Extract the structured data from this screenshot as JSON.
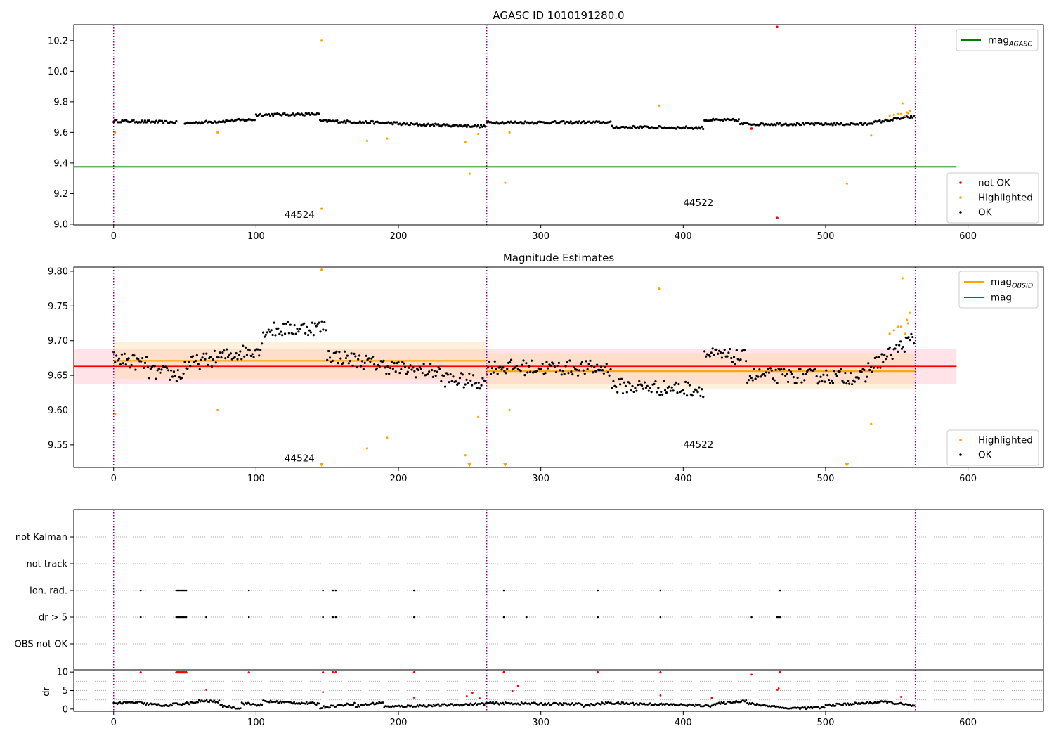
{
  "chart_data": [
    {
      "type": "scatter",
      "panel": "agasc-mag",
      "title": "AGASC ID 1010191280.0",
      "xlim": [
        -28,
        653
      ],
      "ylim": [
        8.995,
        10.305
      ],
      "xticks": [
        0,
        100,
        200,
        300,
        400,
        500,
        600
      ],
      "yticks": [
        9.0,
        9.2,
        9.4,
        9.6,
        9.8,
        10.0,
        10.2
      ],
      "ytick_decimals": 1,
      "obsid_boundaries": [
        0,
        262,
        563
      ],
      "annotations": [
        {
          "text": "44524",
          "x": 120,
          "y": 9.04
        },
        {
          "text": "44522",
          "x": 400,
          "y": 9.12
        }
      ],
      "hline": {
        "name": "mag_AGASC",
        "label": "mag",
        "sub": "AGASC",
        "y": 9.375,
        "x": [
          -28,
          592
        ],
        "color": "#008000"
      },
      "legend_upper": [
        {
          "label": "mag",
          "sub": "AGASC",
          "color": "#008000"
        }
      ],
      "legend_lower": [
        {
          "label": "not OK",
          "color": "#ff0000"
        },
        {
          "label": "Highlighted",
          "color": "#ffa500"
        },
        {
          "label": "OK",
          "color": "#000000"
        }
      ],
      "ok_segments": [
        {
          "x": [
            0,
            45
          ],
          "y": [
            9.675,
            9.665
          ],
          "jitter": 0.008
        },
        {
          "x": [
            50,
            100
          ],
          "y": [
            9.66,
            9.685
          ],
          "jitter": 0.008
        },
        {
          "x": [
            100,
            145
          ],
          "y": [
            9.715,
            9.72
          ],
          "jitter": 0.008
        },
        {
          "x": [
            145,
            200
          ],
          "y": [
            9.675,
            9.66
          ],
          "jitter": 0.008
        },
        {
          "x": [
            200,
            262
          ],
          "y": [
            9.655,
            9.64
          ],
          "jitter": 0.008
        },
        {
          "x": [
            262,
            350
          ],
          "y": [
            9.665,
            9.665
          ],
          "jitter": 0.008
        },
        {
          "x": [
            350,
            415
          ],
          "y": [
            9.635,
            9.63
          ],
          "jitter": 0.008
        },
        {
          "x": [
            415,
            440
          ],
          "y": [
            9.68,
            9.68
          ],
          "jitter": 0.008
        },
        {
          "x": [
            440,
            530
          ],
          "y": [
            9.655,
            9.655
          ],
          "jitter": 0.008
        },
        {
          "x": [
            530,
            563
          ],
          "y": [
            9.66,
            9.705
          ],
          "jitter": 0.008
        }
      ],
      "highlighted": {
        "x": [
          1,
          73,
          146,
          146,
          178,
          192,
          247,
          250,
          256,
          275,
          278,
          383,
          515,
          532,
          545,
          548,
          551,
          553,
          554,
          556,
          557,
          558,
          559
        ],
        "y": [
          9.6,
          9.6,
          10.2,
          9.1,
          9.545,
          9.56,
          9.535,
          9.33,
          9.59,
          9.27,
          9.6,
          9.775,
          9.265,
          9.58,
          9.71,
          9.715,
          9.72,
          9.72,
          9.79,
          9.71,
          9.73,
          9.725,
          9.74
        ]
      },
      "not_ok": {
        "x": [
          448,
          466,
          466
        ],
        "y": [
          9.625,
          10.29,
          9.04
        ]
      }
    },
    {
      "type": "scatter",
      "panel": "magnitude-estimates",
      "title": "Magnitude Estimates",
      "xlim": [
        -28,
        653
      ],
      "ylim": [
        9.5175,
        9.806
      ],
      "xticks": [
        0,
        100,
        200,
        300,
        400,
        500,
        600
      ],
      "yticks": [
        9.55,
        9.6,
        9.65,
        9.7,
        9.75,
        9.8
      ],
      "ytick_decimals": 2,
      "obsid_boundaries": [
        0,
        262,
        563
      ],
      "annotations": [
        {
          "text": "44524",
          "x": 120,
          "y": 9.526
        },
        {
          "text": "44522",
          "x": 400,
          "y": 9.546
        }
      ],
      "bands": [
        {
          "x": [
            -28,
            592
          ],
          "y": [
            9.638,
            9.688
          ],
          "color": "#ff9aae",
          "opacity": 0.28
        },
        {
          "x": [
            0,
            262
          ],
          "y": [
            9.645,
            9.698
          ],
          "color": "#ffd58f",
          "opacity": 0.32
        },
        {
          "x": [
            262,
            563
          ],
          "y": [
            9.631,
            9.682
          ],
          "color": "#ffd58f",
          "opacity": 0.32
        }
      ],
      "obsid_lines": [
        {
          "x": [
            0,
            262
          ],
          "y": 9.671
        },
        {
          "x": [
            262,
            563
          ],
          "y": 9.656
        }
      ],
      "mag_line": {
        "x": [
          -28,
          592
        ],
        "y": 9.663,
        "color": "#ff0000"
      },
      "legend_upper": [
        {
          "label": "mag",
          "sub": "OBSID",
          "color": "#ffa500"
        },
        {
          "label": "mag",
          "sub": "",
          "color": "#ff0000"
        }
      ],
      "legend_lower": [
        {
          "label": "Highlighted",
          "color": "#ffa500"
        },
        {
          "label": "OK",
          "color": "#000000"
        }
      ],
      "ok_segments": [
        {
          "x": [
            0,
            25
          ],
          "y": [
            9.675,
            9.665
          ],
          "jitter": 0.011
        },
        {
          "x": [
            25,
            50
          ],
          "y": [
            9.655,
            9.65
          ],
          "jitter": 0.011
        },
        {
          "x": [
            50,
            105
          ],
          "y": [
            9.665,
            9.69
          ],
          "jitter": 0.011
        },
        {
          "x": [
            105,
            150
          ],
          "y": [
            9.715,
            9.72
          ],
          "jitter": 0.011
        },
        {
          "x": [
            150,
            200
          ],
          "y": [
            9.68,
            9.66
          ],
          "jitter": 0.011
        },
        {
          "x": [
            200,
            230
          ],
          "y": [
            9.66,
            9.655
          ],
          "jitter": 0.011
        },
        {
          "x": [
            230,
            262
          ],
          "y": [
            9.645,
            9.64
          ],
          "jitter": 0.011
        },
        {
          "x": [
            262,
            350
          ],
          "y": [
            9.662,
            9.66
          ],
          "jitter": 0.011
        },
        {
          "x": [
            350,
            415
          ],
          "y": [
            9.635,
            9.63
          ],
          "jitter": 0.011
        },
        {
          "x": [
            415,
            445
          ],
          "y": [
            9.68,
            9.675
          ],
          "jitter": 0.011
        },
        {
          "x": [
            445,
            530
          ],
          "y": [
            9.65,
            9.648
          ],
          "jitter": 0.011
        },
        {
          "x": [
            530,
            563
          ],
          "y": [
            9.66,
            9.705
          ],
          "jitter": 0.011
        }
      ],
      "highlighted": {
        "x": [
          1,
          73,
          178,
          192,
          247,
          256,
          278,
          383,
          532,
          545,
          548,
          551,
          553,
          554,
          556,
          557,
          558,
          559
        ],
        "y": [
          9.595,
          9.6,
          9.545,
          9.56,
          9.535,
          9.59,
          9.6,
          9.775,
          9.58,
          9.71,
          9.715,
          9.72,
          9.72,
          9.79,
          9.71,
          9.73,
          9.725,
          9.74
        ]
      },
      "out_high": [
        146
      ],
      "out_low": [
        146,
        250,
        275,
        515
      ]
    },
    {
      "type": "scatter",
      "panel": "flags",
      "xlim": [
        -28,
        653
      ],
      "obsid_boundaries": [
        0,
        262,
        563
      ],
      "categories": [
        "not Kalman",
        "not track",
        "Ion. rad.",
        "dr > 5",
        "OBS not OK"
      ],
      "flag_points": {
        "Ion. rad.": [
          19,
          44,
          45,
          46,
          47,
          48,
          49,
          50,
          51,
          95,
          147,
          154,
          156,
          211,
          274,
          340,
          384,
          468
        ],
        "dr > 5": [
          19,
          44,
          45,
          46,
          47,
          48,
          49,
          50,
          51,
          65,
          95,
          147,
          154,
          156,
          211,
          274,
          290,
          340,
          384,
          448,
          466,
          467,
          468
        ]
      }
    },
    {
      "type": "scatter",
      "panel": "dr",
      "ylabel": "dr",
      "xlim": [
        -28,
        653
      ],
      "ylim": [
        -0.6,
        10.6
      ],
      "xticks": [
        0,
        100,
        200,
        300,
        400,
        500,
        600
      ],
      "yticks": [
        0,
        5,
        10
      ],
      "ytick_decimals": 0,
      "obsid_boundaries": [
        0,
        262,
        563
      ],
      "clipped_red": [
        19,
        44,
        45,
        46,
        47,
        48,
        49,
        50,
        51,
        95,
        147,
        154,
        156,
        211,
        274,
        340,
        384,
        468
      ],
      "red_points": {
        "x": [
          65,
          147,
          211,
          248,
          252,
          257,
          280,
          284,
          384,
          420,
          448,
          466,
          467,
          553
        ],
        "y": [
          5.2,
          4.6,
          3.1,
          3.5,
          4.4,
          2.9,
          4.9,
          6.2,
          3.7,
          3.0,
          9.3,
          5.2,
          5.6,
          3.3
        ]
      },
      "ok_segments": [
        {
          "x": [
            0,
            20
          ],
          "y": [
            1.6,
            1.8
          ],
          "jitter": 0.3
        },
        {
          "x": [
            20,
            40
          ],
          "y": [
            1.5,
            0.8
          ],
          "jitter": 0.3
        },
        {
          "x": [
            40,
            60
          ],
          "y": [
            1.2,
            1.8
          ],
          "jitter": 0.3
        },
        {
          "x": [
            60,
            75
          ],
          "y": [
            2.2,
            2.0
          ],
          "jitter": 0.3
        },
        {
          "x": [
            75,
            90
          ],
          "y": [
            0.9,
            0.2
          ],
          "jitter": 0.3
        },
        {
          "x": [
            90,
            105
          ],
          "y": [
            1.6,
            1.0
          ],
          "jitter": 0.3
        },
        {
          "x": [
            105,
            145
          ],
          "y": [
            2.1,
            1.4
          ],
          "jitter": 0.3
        },
        {
          "x": [
            145,
            170
          ],
          "y": [
            0.4,
            1.5
          ],
          "jitter": 0.3
        },
        {
          "x": [
            170,
            190
          ],
          "y": [
            0.8,
            1.9
          ],
          "jitter": 0.3
        },
        {
          "x": [
            190,
            262
          ],
          "y": [
            0.6,
            1.4
          ],
          "jitter": 0.3
        },
        {
          "x": [
            262,
            330
          ],
          "y": [
            1.6,
            1.3
          ],
          "jitter": 0.3
        },
        {
          "x": [
            330,
            350
          ],
          "y": [
            0.9,
            1.8
          ],
          "jitter": 0.3
        },
        {
          "x": [
            350,
            420
          ],
          "y": [
            1.6,
            0.9
          ],
          "jitter": 0.3
        },
        {
          "x": [
            420,
            445
          ],
          "y": [
            1.2,
            2.4
          ],
          "jitter": 0.3
        },
        {
          "x": [
            445,
            470
          ],
          "y": [
            1.5,
            0.5
          ],
          "jitter": 0.3
        },
        {
          "x": [
            470,
            500
          ],
          "y": [
            0.2,
            0.4
          ],
          "jitter": 0.3
        },
        {
          "x": [
            500,
            545
          ],
          "y": [
            1.0,
            2.0
          ],
          "jitter": 0.3
        },
        {
          "x": [
            545,
            563
          ],
          "y": [
            1.8,
            0.8
          ],
          "jitter": 0.3
        }
      ]
    }
  ]
}
